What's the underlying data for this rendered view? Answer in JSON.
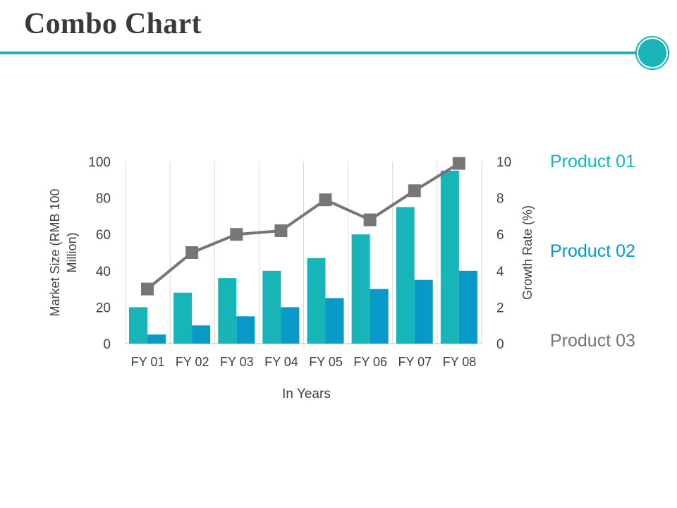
{
  "page": {
    "title": "Combo Chart"
  },
  "colors": {
    "accent": "#1ab3b8",
    "product01": "#17b5b8",
    "product02": "#0799c7",
    "product03": "#767676",
    "grid": "#d9d9d9",
    "text": "#404040"
  },
  "chart_data": {
    "type": "combo",
    "title": "",
    "categories": [
      "FY 01",
      "FY 02",
      "FY 03",
      "FY 04",
      "FY 05",
      "FY 06",
      "FY 07",
      "FY 08"
    ],
    "series": [
      {
        "name": "Product 01",
        "type": "bar",
        "axis": "left",
        "values": [
          20,
          28,
          36,
          40,
          47,
          60,
          75,
          95
        ]
      },
      {
        "name": "Product 02",
        "type": "bar",
        "axis": "left",
        "values": [
          5,
          10,
          15,
          20,
          25,
          30,
          35,
          40
        ]
      },
      {
        "name": "Product 03",
        "type": "line",
        "axis": "right",
        "values": [
          3,
          5,
          6,
          6.2,
          7.9,
          6.8,
          8.4,
          9.9
        ]
      }
    ],
    "xlabel": "In Years",
    "ylabel": "Market Size (RMB 100 Million)",
    "ylabel_lines": [
      "Market Size (RMB 100",
      "Million)"
    ],
    "y2label": "Growth Rate (%)",
    "ylim": [
      0,
      100
    ],
    "y2lim": [
      0,
      10
    ],
    "yticks": [
      "0",
      "20",
      "40",
      "60",
      "80",
      "100"
    ],
    "y2ticks": [
      "0",
      "2",
      "4",
      "6",
      "8",
      "10"
    ],
    "grid": "vertical",
    "legend": "right"
  }
}
